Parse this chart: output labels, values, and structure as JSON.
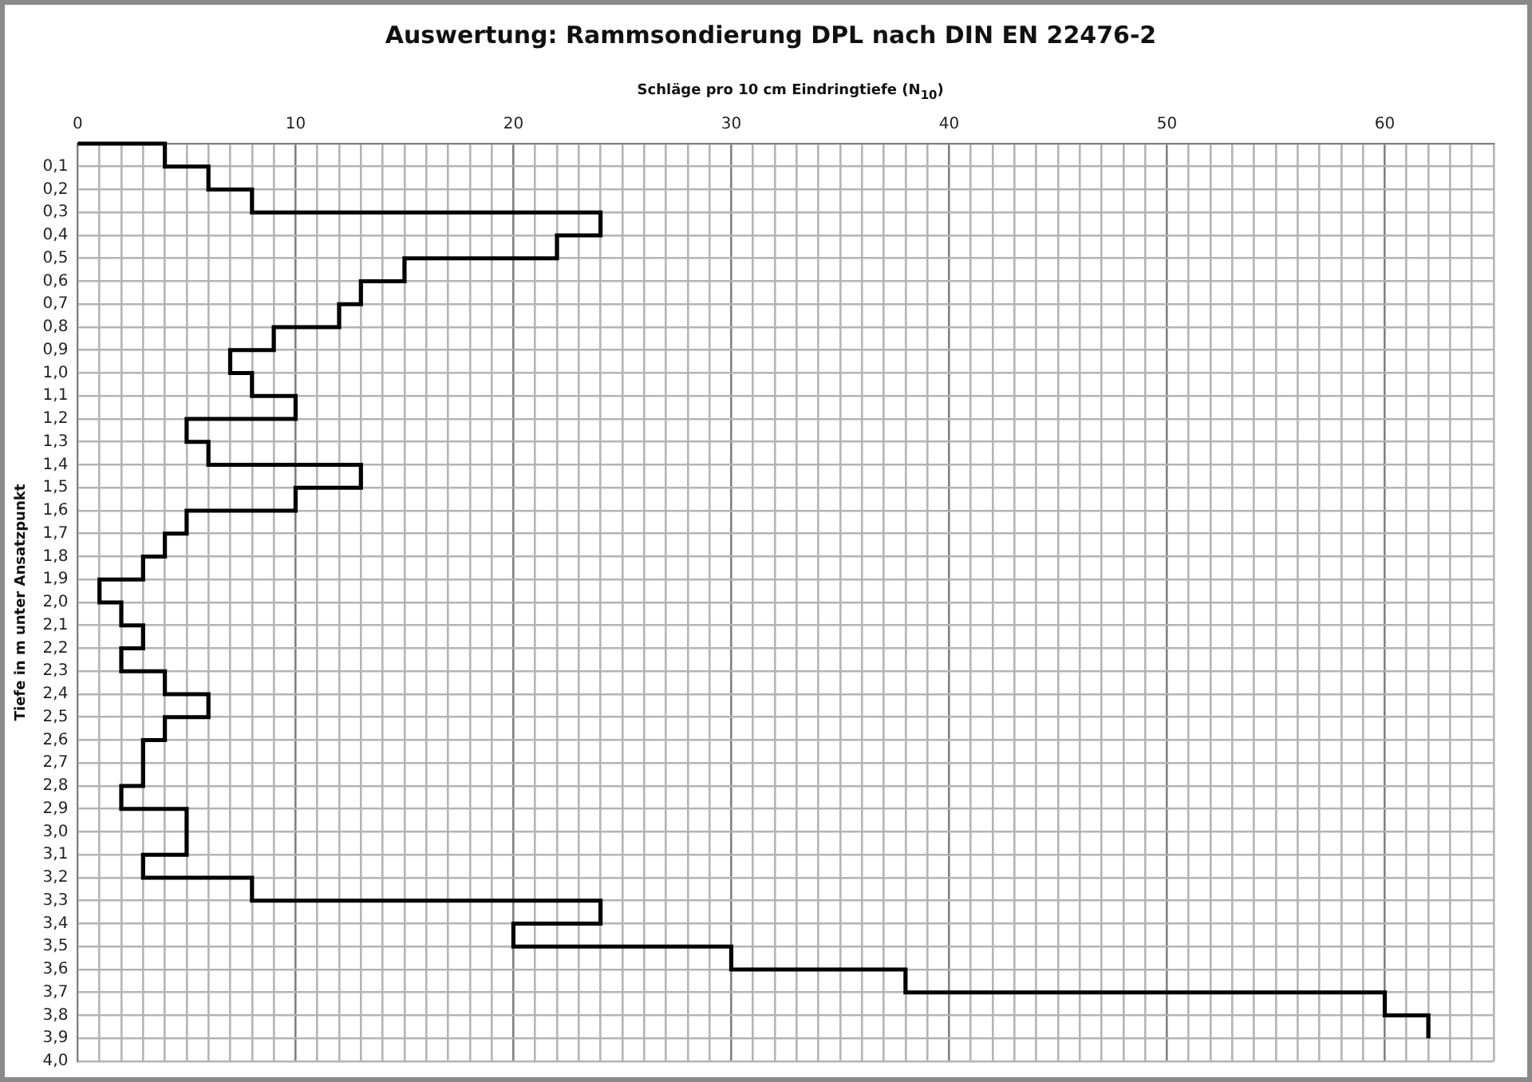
{
  "chart_data": {
    "type": "step",
    "orientation": "horizontal",
    "title": "Auswertung: Rammsondierung DPL nach DIN EN 22476-2",
    "xlabel": "Schläge pro 10 cm Eindringtiefe (N$_{10}$)",
    "ylabel": "Tiefe in m unter Ansatzpunkt",
    "x": [
      0,
      0,
      0.1,
      0.2,
      0.3,
      0.4,
      0.5,
      0.6,
      0.7,
      0.8,
      0.9,
      1.0,
      1.1,
      1.2,
      1.3,
      1.4,
      1.5,
      1.6,
      1.7,
      1.8,
      1.9,
      2.0,
      2.1,
      2.2,
      2.3,
      2.4,
      2.5,
      2.6,
      2.7,
      2.8,
      2.9,
      3.0,
      3.1,
      3.2,
      3.3,
      3.4,
      3.5,
      3.6,
      3.7,
      3.8,
      3.9
    ],
    "values": [
      0,
      4,
      6,
      8,
      24,
      22,
      15,
      13,
      12,
      9,
      7,
      8,
      10,
      5,
      6,
      13,
      10,
      5,
      4,
      3,
      1,
      2,
      3,
      2,
      4,
      6,
      4,
      3,
      3,
      2,
      5,
      5,
      3,
      8,
      24,
      20,
      30,
      38,
      60,
      62,
      62
    ],
    "color": "#000000",
    "grid": true,
    "xlim": [
      0,
      65
    ],
    "xticks": [
      0,
      {
        "value": 1,
        "label": null
      },
      {
        "value": 2,
        "label": null
      },
      {
        "value": 3,
        "label": null
      },
      {
        "value": 4,
        "label": null
      },
      {
        "value": 5,
        "label": null
      },
      {
        "value": 6,
        "label": null
      },
      {
        "value": 7,
        "label": null
      },
      {
        "value": 8,
        "label": null
      },
      {
        "value": 9,
        "label": null
      },
      10,
      {
        "value": 11,
        "label": null
      },
      {
        "value": 12,
        "label": null
      },
      {
        "value": 13,
        "label": null
      },
      {
        "value": 14,
        "label": null
      },
      {
        "value": 15,
        "label": null
      },
      {
        "value": 16,
        "label": null
      },
      {
        "value": 17,
        "label": null
      },
      {
        "value": 18,
        "label": null
      },
      {
        "value": 19,
        "label": null
      },
      20,
      {
        "value": 21,
        "label": null
      },
      {
        "value": 22,
        "label": null
      },
      {
        "value": 23,
        "label": null
      },
      {
        "value": 24,
        "label": null
      },
      {
        "value": 25,
        "label": null
      },
      {
        "value": 26,
        "label": null
      },
      {
        "value": 27,
        "label": null
      },
      {
        "value": 28,
        "label": null
      },
      {
        "value": 29,
        "label": null
      },
      30,
      {
        "value": 31,
        "label": null
      },
      {
        "value": 32,
        "label": null
      },
      {
        "value": 33,
        "label": null
      },
      {
        "value": 34,
        "label": null
      },
      {
        "value": 35,
        "label": null
      },
      {
        "value": 36,
        "label": null
      },
      {
        "value": 37,
        "label": null
      },
      {
        "value": 38,
        "label": null
      },
      {
        "value": 39,
        "label": null
      },
      40,
      {
        "value": 41,
        "label": null
      },
      {
        "value": 42,
        "label": null
      },
      {
        "value": 43,
        "label": null
      },
      {
        "value": 44,
        "label": null
      },
      {
        "value": 45,
        "label": null
      },
      {
        "value": 46,
        "label": null
      },
      {
        "value": 47,
        "label": null
      },
      {
        "value": 48,
        "label": null
      },
      {
        "value": 49,
        "label": null
      },
      50,
      {
        "value": 51,
        "label": null
      },
      {
        "value": 52,
        "label": null
      },
      {
        "value": 53,
        "label": null
      },
      {
        "value": 54,
        "label": null
      },
      {
        "value": 55,
        "label": null
      },
      {
        "value": 56,
        "label": null
      },
      {
        "value": 57,
        "label": null
      },
      {
        "value": 58,
        "label": null
      },
      {
        "value": 59,
        "label": null
      },
      60,
      {
        "value": 61,
        "label": null
      },
      {
        "value": 62,
        "label": null
      },
      {
        "value": 63,
        "label": null
      },
      {
        "value": 64,
        "label": null
      },
      {
        "value": 65,
        "label": null
      }
    ],
    "ylim": [
      4.0,
      0
    ],
    "yticks": [
      {
        "value": 0,
        "label": null
      },
      {
        "value": 0.1,
        "label": "0,1"
      },
      {
        "value": 0.2,
        "label": "0,2"
      },
      {
        "value": 0.3,
        "label": "0,3"
      },
      {
        "value": 0.4,
        "label": "0,4"
      },
      {
        "value": 0.5,
        "label": "0,5"
      },
      {
        "value": 0.6,
        "label": "0,6"
      },
      {
        "value": 0.7,
        "label": "0,7"
      },
      {
        "value": 0.8,
        "label": "0,8"
      },
      {
        "value": 0.9,
        "label": "0,9"
      },
      {
        "value": 1.0,
        "label": "1,0"
      },
      {
        "value": 1.1,
        "label": "1,1"
      },
      {
        "value": 1.2,
        "label": "1,2"
      },
      {
        "value": 1.3,
        "label": "1,3"
      },
      {
        "value": 1.4,
        "label": "1,4"
      },
      {
        "value": 1.5,
        "label": "1,5"
      },
      {
        "value": 1.6,
        "label": "1,6"
      },
      {
        "value": 1.7,
        "label": "1,7"
      },
      {
        "value": 1.8,
        "label": "1,8"
      },
      {
        "value": 1.9,
        "label": "1,9"
      },
      {
        "value": 2.0,
        "label": "2,0"
      },
      {
        "value": 2.1,
        "label": "2,1"
      },
      {
        "value": 2.2,
        "label": "2,2"
      },
      {
        "value": 2.3,
        "label": "2,3"
      },
      {
        "value": 2.4,
        "label": "2,4"
      },
      {
        "value": 2.5,
        "label": "2,5"
      },
      {
        "value": 2.6,
        "label": "2,6"
      },
      {
        "value": 2.7,
        "label": "2,7"
      },
      {
        "value": 2.8,
        "label": "2,8"
      },
      {
        "value": 2.9,
        "label": "2,9"
      },
      {
        "value": 3.0,
        "label": "3,0"
      },
      {
        "value": 3.1,
        "label": "3,1"
      },
      {
        "value": 3.2,
        "label": "3,2"
      },
      {
        "value": 3.3,
        "label": "3,3"
      },
      {
        "value": 3.4,
        "label": "3,4"
      },
      {
        "value": 3.5,
        "label": "3,5"
      },
      {
        "value": 3.6,
        "label": "3,6"
      },
      {
        "value": 3.7,
        "label": "3,7"
      },
      {
        "value": 3.8,
        "label": "3,8"
      },
      {
        "value": 3.9,
        "label": "3,9"
      },
      {
        "value": 4.0,
        "label": "4,0"
      }
    ]
  }
}
